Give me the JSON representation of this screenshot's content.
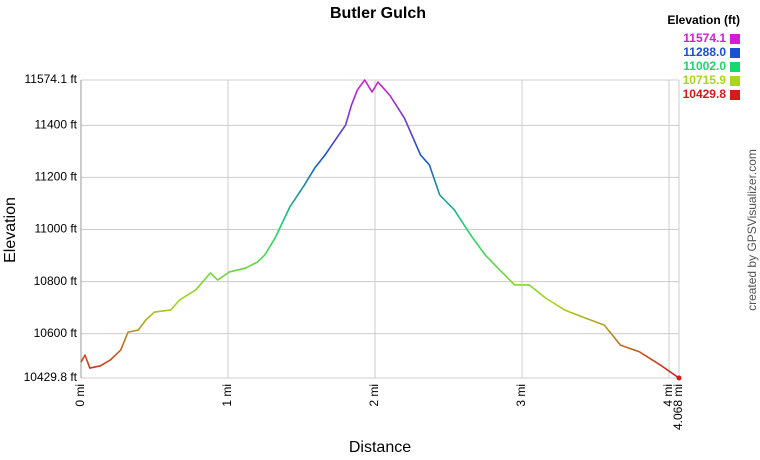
{
  "chart_data": {
    "type": "line",
    "title": "Butler Gulch",
    "x_label": "Distance",
    "y_label": "Elevation",
    "credit": "created by GPSVisualizer.com",
    "legend_title": "Elevation (ft)",
    "color_scale": [
      {
        "value": 11574.1,
        "label": "11574.1",
        "color": "#d61ad6"
      },
      {
        "value": 11288.0,
        "label": "11288.0",
        "color": "#1a4fd6"
      },
      {
        "value": 11002.0,
        "label": "11002.0",
        "color": "#1ad66e"
      },
      {
        "value": 10715.9,
        "label": "10715.9",
        "color": "#a8d61a"
      },
      {
        "value": 10429.8,
        "label": "10429.8",
        "color": "#d61a1a"
      }
    ],
    "x": [
      0,
      0.027,
      0.06,
      0.13,
      0.2,
      0.27,
      0.32,
      0.39,
      0.44,
      0.5,
      0.61,
      0.67,
      0.78,
      0.88,
      0.93,
      1.01,
      1.12,
      1.2,
      1.25,
      1.32,
      1.42,
      1.52,
      1.59,
      1.66,
      1.73,
      1.8,
      1.84,
      1.88,
      1.93,
      1.98,
      2.02,
      2.1,
      2.2,
      2.31,
      2.37,
      2.44,
      2.54,
      2.65,
      2.75,
      2.85,
      2.95,
      3.05,
      3.16,
      3.29,
      3.43,
      3.56,
      3.67,
      3.8,
      3.94,
      4.068
    ],
    "series": [
      {
        "name": "Elevation",
        "values": [
          10491,
          10518,
          10468,
          10476,
          10499,
          10537,
          10606,
          10614,
          10652,
          10683,
          10691,
          10729,
          10768,
          10833,
          10806,
          10837,
          10852,
          10875,
          10902,
          10967,
          11086,
          11171,
          11236,
          11286,
          11344,
          11401,
          11478,
          11536,
          11574.1,
          11528,
          11566,
          11516,
          11428,
          11286,
          11248,
          11133,
          11075,
          10979,
          10902,
          10844,
          10787,
          10787,
          10737,
          10691,
          10660,
          10633,
          10556,
          10530,
          10480,
          10429.8
        ]
      }
    ],
    "xlim": [
      0,
      4.068
    ],
    "xticks": [
      {
        "value": 0,
        "label": "0 mi"
      },
      {
        "value": 1,
        "label": "1 mi"
      },
      {
        "value": 2,
        "label": "2 mi"
      },
      {
        "value": 3,
        "label": "3 mi"
      },
      {
        "value": 4,
        "label": "4 mi"
      },
      {
        "value": 4.068,
        "label": "4.068 mi"
      }
    ],
    "ylim": [
      10429.8,
      11574.1
    ],
    "yticks": [
      {
        "value": 10429.8,
        "label": "10429.8 ft"
      },
      {
        "value": 10600,
        "label": "10600 ft"
      },
      {
        "value": 10800,
        "label": "10800 ft"
      },
      {
        "value": 11000,
        "label": "11000 ft"
      },
      {
        "value": 11200,
        "label": "11200 ft"
      },
      {
        "value": 11400,
        "label": "11400 ft"
      },
      {
        "value": 11574.1,
        "label": "11574.1 ft"
      }
    ],
    "grid": true
  }
}
